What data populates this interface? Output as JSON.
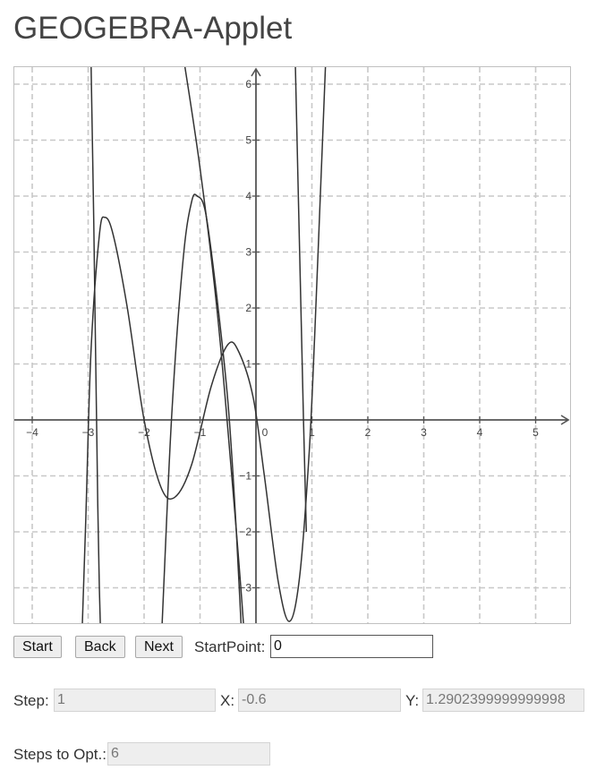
{
  "page": {
    "title": "GEOGEBRA-Applet"
  },
  "applet": {
    "x_tick_labels": [
      "−4",
      "−3",
      "−2",
      "−1",
      "0",
      "1",
      "2",
      "3",
      "4",
      "5"
    ],
    "y_tick_labels": [
      "6",
      "5",
      "4",
      "3",
      "2",
      "1",
      "−1",
      "−2",
      "−3"
    ],
    "colors": {
      "grid": "#c8c8c8",
      "axis": "#555555",
      "curve": "#333333",
      "label": "#444444"
    }
  },
  "controls": {
    "start_label": "Start",
    "back_label": "Back",
    "next_label": "Next",
    "startpoint_label": "StartPoint:",
    "startpoint_value": "0",
    "step_label": "Step:",
    "step_value": "1",
    "x_label": "X:",
    "x_value": "-0.6",
    "y_label": "Y:",
    "y_value": "1.2902399999999998",
    "steps_to_opt_label": "Steps to Opt.:",
    "steps_to_opt_value": "6"
  }
}
